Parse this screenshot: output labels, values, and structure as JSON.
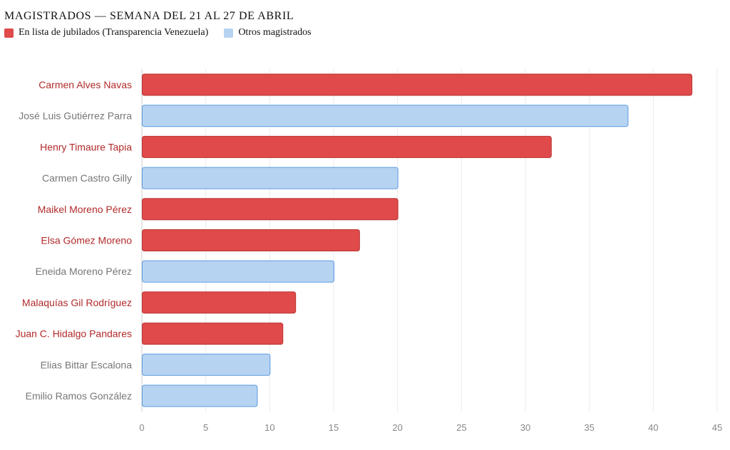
{
  "chart_data": {
    "type": "bar",
    "orientation": "horizontal",
    "title": "MAGISTRADOS — SEMANA DEL 21 AL 27 DE ABRIL",
    "legend": [
      {
        "key": "jubilado",
        "label": "En lista de jubilados (Transparencia Venezuela)",
        "color": "#e04a4a"
      },
      {
        "key": "otro",
        "label": "Otros magistrados",
        "color": "#b7d3f2"
      }
    ],
    "categories": [
      "Carmen Alves Navas",
      "José Luis Gutiérrez Parra",
      "Henry Timaure Tapia",
      "Carmen Castro Gilly",
      "Maikel Moreno Pérez",
      "Elsa Gómez Moreno",
      "Eneida Moreno Pérez",
      "Malaquías Gil Rodríguez",
      "Juan C. Hidalgo Pandares",
      "Elias Bittar Escalona",
      "Emilio Ramos González"
    ],
    "values": [
      43,
      38,
      32,
      20,
      20,
      17,
      15,
      12,
      11,
      10,
      9
    ],
    "groups": [
      "jubilado",
      "otro",
      "jubilado",
      "otro",
      "jubilado",
      "jubilado",
      "otro",
      "jubilado",
      "jubilado",
      "otro",
      "otro"
    ],
    "xlim": [
      0,
      45
    ],
    "xticks": [
      "0",
      "5",
      "10",
      "15",
      "20",
      "25",
      "30",
      "35",
      "40",
      "45"
    ],
    "grid": true,
    "xlabel": "",
    "ylabel": "",
    "colors": {
      "jubilado_fill": "#e04a4a",
      "jubilado_stroke": "#b93434",
      "jubilado_label": "#b22a2a",
      "otro_fill": "#b7d3f2",
      "otro_stroke": "#5a9be0",
      "otro_label": "#777777"
    }
  }
}
